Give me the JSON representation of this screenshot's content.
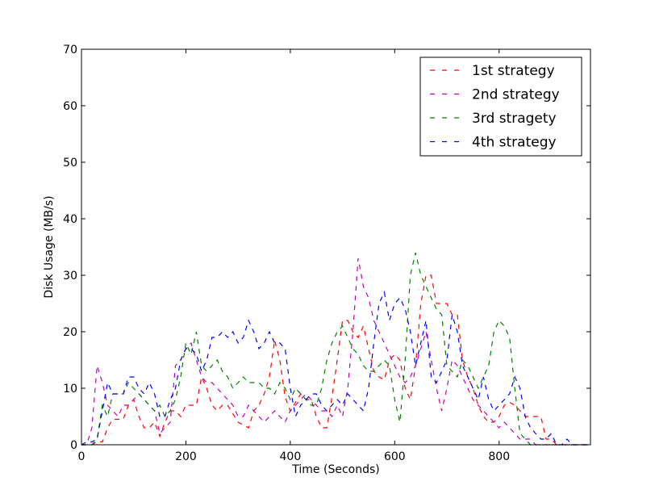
{
  "chart_data": {
    "type": "line",
    "xlabel": "Time (Seconds)",
    "ylabel": "Disk Usage (MB/s)",
    "xlim": [
      0,
      975
    ],
    "ylim": [
      0,
      70
    ],
    "xticks": [
      0,
      200,
      400,
      600,
      800
    ],
    "yticks": [
      0,
      10,
      20,
      30,
      40,
      50,
      60,
      70
    ],
    "grid": false,
    "legend_position": "top-right",
    "line_style": "dashed",
    "series": [
      {
        "name": "1st strategy",
        "color": "#ff0000",
        "x": [
          0,
          10,
          20,
          30,
          40,
          50,
          60,
          70,
          80,
          90,
          100,
          110,
          120,
          130,
          140,
          150,
          160,
          170,
          180,
          190,
          200,
          210,
          220,
          230,
          240,
          250,
          260,
          270,
          280,
          290,
          300,
          310,
          320,
          330,
          340,
          350,
          360,
          370,
          380,
          390,
          400,
          410,
          420,
          430,
          440,
          450,
          460,
          470,
          480,
          490,
          500,
          510,
          520,
          530,
          540,
          550,
          560,
          570,
          580,
          590,
          600,
          610,
          620,
          630,
          640,
          650,
          660,
          670,
          680,
          690,
          700,
          710,
          720,
          730,
          740,
          750,
          760,
          770,
          780,
          790,
          800,
          810,
          820,
          830,
          840,
          850,
          860,
          870,
          880,
          890,
          900,
          910,
          920,
          930,
          940,
          950,
          960,
          970
        ],
        "y": [
          0,
          0,
          0,
          0.5,
          0.5,
          3,
          4.5,
          4.5,
          4.5,
          7,
          8,
          5,
          3,
          3,
          4,
          1.5,
          4,
          6,
          6,
          5,
          7,
          7,
          7,
          12,
          10,
          7,
          6,
          7,
          7,
          5.5,
          4,
          3.5,
          3,
          6,
          7,
          9,
          12,
          18.5,
          15,
          8.5,
          6,
          7.5,
          9,
          8,
          8,
          5,
          3,
          3,
          8.5,
          15,
          22,
          22,
          20,
          19,
          21,
          17,
          13,
          12,
          11.5,
          15,
          16,
          15,
          10,
          8,
          14,
          25,
          30,
          30,
          25,
          25,
          25,
          23,
          23,
          15,
          12,
          10,
          7,
          5,
          4,
          4,
          5,
          7,
          7.5,
          7,
          6,
          5,
          5,
          5,
          5,
          1,
          1,
          0,
          0,
          0,
          0,
          0,
          0,
          0
        ]
      },
      {
        "name": "2nd strategy",
        "color": "#bf00bf",
        "x": [
          0,
          10,
          20,
          30,
          40,
          50,
          60,
          70,
          80,
          90,
          100,
          110,
          120,
          130,
          140,
          150,
          160,
          170,
          180,
          190,
          200,
          210,
          220,
          230,
          240,
          250,
          260,
          270,
          280,
          290,
          300,
          310,
          320,
          330,
          340,
          350,
          360,
          370,
          380,
          390,
          400,
          410,
          420,
          430,
          440,
          450,
          460,
          470,
          480,
          490,
          500,
          510,
          520,
          530,
          540,
          550,
          560,
          570,
          580,
          590,
          600,
          610,
          620,
          630,
          640,
          650,
          660,
          670,
          680,
          690,
          700,
          710,
          720,
          730,
          740,
          750,
          760,
          770,
          780,
          790,
          800,
          810,
          820,
          830,
          840,
          850,
          860,
          870,
          880,
          890,
          900,
          910,
          920,
          930,
          940,
          950,
          960,
          970
        ],
        "y": [
          0,
          0,
          3,
          14,
          11,
          7,
          6,
          5,
          7,
          7,
          8,
          9,
          8,
          7,
          6,
          2,
          3,
          4,
          14,
          15,
          17,
          18,
          15,
          12,
          11,
          11,
          10,
          9,
          8,
          7,
          5,
          5,
          7,
          6,
          5,
          4,
          5,
          6,
          5,
          4,
          6,
          7,
          8,
          9,
          8,
          7,
          6,
          6,
          5,
          7,
          5,
          10,
          20,
          33,
          28,
          26,
          22,
          20,
          18,
          16,
          14,
          12,
          11,
          12,
          14,
          17,
          20,
          15,
          10,
          6,
          10,
          15,
          14,
          12,
          10,
          8,
          7,
          6,
          5,
          4,
          3,
          4,
          3,
          2,
          1,
          1,
          1,
          0,
          0,
          0,
          0,
          0,
          0,
          0,
          0,
          0,
          0,
          0
        ]
      },
      {
        "name": "3rd stragety",
        "color": "#008000",
        "x": [
          0,
          10,
          20,
          30,
          40,
          50,
          60,
          70,
          80,
          90,
          100,
          110,
          120,
          130,
          140,
          150,
          160,
          170,
          180,
          190,
          200,
          210,
          220,
          230,
          240,
          250,
          260,
          270,
          280,
          290,
          300,
          310,
          320,
          330,
          340,
          350,
          360,
          370,
          380,
          390,
          400,
          410,
          420,
          430,
          440,
          450,
          460,
          470,
          480,
          490,
          500,
          510,
          520,
          530,
          540,
          550,
          560,
          570,
          580,
          590,
          600,
          610,
          620,
          630,
          640,
          650,
          660,
          670,
          680,
          690,
          700,
          710,
          720,
          730,
          740,
          750,
          760,
          770,
          780,
          790,
          800,
          810,
          820,
          830,
          840,
          850,
          860,
          870,
          880,
          890,
          900,
          910,
          920,
          930,
          940,
          950,
          960,
          970
        ],
        "y": [
          0,
          0,
          0,
          1,
          7,
          5,
          9,
          9,
          9,
          11,
          10,
          9,
          8,
          7,
          6,
          7,
          5,
          6,
          8,
          12,
          18,
          16,
          20,
          14,
          13,
          14,
          15,
          13,
          12,
          10,
          11,
          12,
          11,
          11,
          11,
          10,
          10,
          9,
          11,
          10,
          8,
          10,
          9,
          8,
          7,
          7,
          10,
          15,
          18,
          20,
          21,
          19,
          17,
          16,
          14,
          13,
          13,
          14,
          15,
          14,
          8,
          4,
          15,
          30,
          34,
          30,
          28,
          26,
          24,
          23,
          14,
          13,
          12,
          15,
          14,
          12,
          10,
          12,
          14,
          20,
          22,
          21,
          19,
          10,
          2,
          1,
          0,
          0,
          0,
          0,
          0,
          0,
          0,
          0,
          0,
          0,
          0,
          0
        ]
      },
      {
        "name": "4th strategy",
        "color": "#0000ff",
        "x": [
          0,
          10,
          20,
          30,
          40,
          50,
          60,
          70,
          80,
          90,
          100,
          110,
          120,
          130,
          140,
          150,
          160,
          170,
          180,
          190,
          200,
          210,
          220,
          230,
          240,
          250,
          260,
          270,
          280,
          290,
          300,
          310,
          320,
          330,
          340,
          350,
          360,
          370,
          380,
          390,
          400,
          410,
          420,
          430,
          440,
          450,
          460,
          470,
          480,
          490,
          500,
          510,
          520,
          530,
          540,
          550,
          560,
          570,
          580,
          590,
          600,
          610,
          620,
          630,
          640,
          650,
          660,
          670,
          680,
          690,
          700,
          710,
          720,
          730,
          740,
          750,
          760,
          770,
          780,
          790,
          800,
          810,
          820,
          830,
          840,
          850,
          860,
          870,
          880,
          890,
          900,
          910,
          920,
          930,
          940,
          950,
          960,
          970
        ],
        "y": [
          0,
          0.5,
          0.5,
          1,
          6,
          11,
          9,
          9,
          9,
          12,
          12,
          10,
          9,
          11,
          9,
          5,
          5,
          8,
          10,
          15,
          17,
          17,
          16,
          13,
          15,
          19,
          19,
          20,
          19,
          20,
          18,
          19,
          22,
          20,
          17,
          18,
          20,
          18,
          18,
          17,
          10,
          5,
          7,
          8,
          9,
          9,
          7,
          6,
          7,
          8,
          7,
          9,
          8,
          7,
          6,
          10,
          18,
          25,
          27,
          22,
          25,
          26,
          24,
          20,
          14,
          18,
          22,
          12,
          11,
          13,
          15,
          23,
          20,
          14,
          12,
          10,
          8,
          12,
          8,
          6,
          7,
          8,
          9,
          12,
          10,
          5,
          3,
          2,
          1,
          1,
          2,
          0,
          0,
          1,
          0,
          0,
          0,
          0
        ]
      }
    ]
  }
}
